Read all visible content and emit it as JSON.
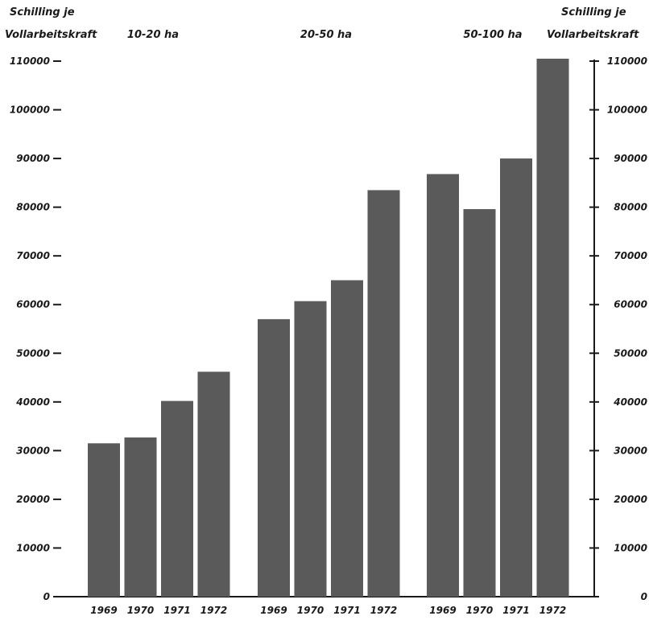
{
  "chart_data": {
    "type": "bar",
    "title": "",
    "left_axis_label": [
      "Schilling je",
      "Vollarbeitskraft"
    ],
    "right_axis_label": [
      "Schilling je",
      "Vollarbeitskraft"
    ],
    "ylim": [
      0,
      110000
    ],
    "y_ticks": [
      0,
      10000,
      20000,
      30000,
      40000,
      50000,
      60000,
      70000,
      80000,
      90000,
      100000,
      110000
    ],
    "y_tick_labels_left": [
      "0",
      "10000",
      "20000",
      "30000",
      "40000",
      "50000",
      "60000",
      "70000",
      "80000",
      "90000",
      "100000",
      "110000"
    ],
    "y_tick_labels_right": [
      "0",
      "10000",
      "20000",
      "30000",
      "40000",
      "50000",
      "60000",
      "70000",
      "80000",
      "90000",
      "100000",
      "110000"
    ],
    "bar_color": "#5a5a5a",
    "grid": false,
    "groups": [
      {
        "name": "10-20 ha",
        "categories": [
          "1969",
          "1970",
          "1971",
          "1972"
        ],
        "values": [
          31500,
          32700,
          40200,
          46200
        ]
      },
      {
        "name": "20-50 ha",
        "categories": [
          "1969",
          "1970",
          "1971",
          "1972"
        ],
        "values": [
          57000,
          60700,
          65000,
          83500
        ]
      },
      {
        "name": "50-100 ha",
        "categories": [
          "1969",
          "1970",
          "1971",
          "1972"
        ],
        "values": [
          86800,
          79600,
          90000,
          110500
        ]
      }
    ]
  }
}
